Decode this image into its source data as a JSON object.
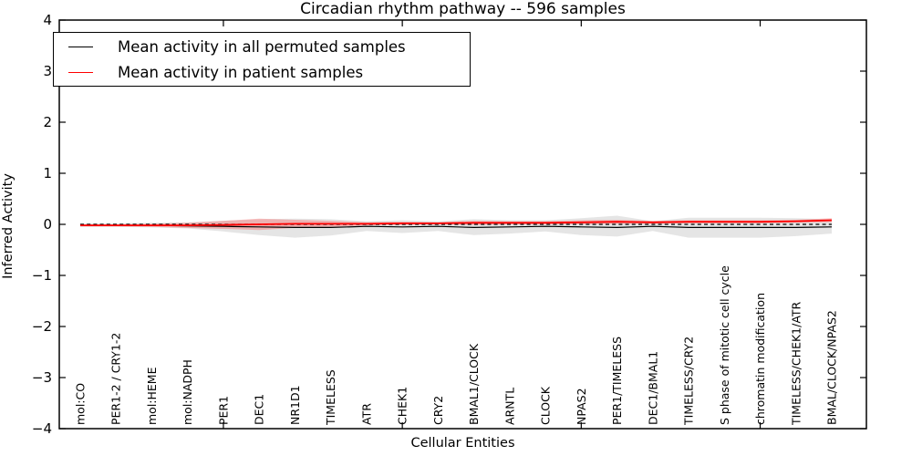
{
  "title": "Circadian rhythm pathway -- 596 samples",
  "legend": {
    "items": [
      {
        "label": "Mean activity in all permuted samples",
        "color": "#000000"
      },
      {
        "label": "Mean activity in patient samples",
        "color": "#ff0000"
      }
    ]
  },
  "chart_data": {
    "type": "line",
    "title": "Circadian rhythm pathway -- 596 samples",
    "xlabel": "Cellular Entities",
    "ylabel": "Inferred Activity",
    "ylim": [
      -4,
      4
    ],
    "ytick_values": [
      -4,
      -3,
      -2,
      -1,
      0,
      1,
      2,
      3,
      4
    ],
    "ytick_labels": [
      "−4",
      "−3",
      "−2",
      "−1",
      "0",
      "1",
      "2",
      "3",
      "4"
    ],
    "xticks_major_positions": [
      5,
      10,
      15,
      20
    ],
    "grid": false,
    "legend_position": "upper-left",
    "categories": [
      "mol:CO",
      "PER1-2 / CRY1-2",
      "mol:HEME",
      "mol:NADPH",
      "PER1",
      "DEC1",
      "NR1D1",
      "TIMELESS",
      "ATR",
      "CHEK1",
      "CRY2",
      "BMAL1/CLOCK",
      "ARNTL",
      "CLOCK",
      "NPAS2",
      "PER1/TIMELESS",
      "DEC1/BMAL1",
      "TIMELESS/CRY2",
      "S phase of mitotic cell cycle",
      "chromatin modification",
      "TIMELESS/CHEK1/ATR",
      "BMAL/CLOCK/NPAS2"
    ],
    "series": [
      {
        "name": "Mean activity in all permuted samples",
        "color": "#000000",
        "style": "solid",
        "values": [
          -0.02,
          -0.02,
          -0.02,
          -0.03,
          -0.04,
          -0.05,
          -0.06,
          -0.06,
          -0.04,
          -0.05,
          -0.04,
          -0.06,
          -0.05,
          -0.04,
          -0.05,
          -0.06,
          -0.04,
          -0.06,
          -0.06,
          -0.06,
          -0.06,
          -0.05
        ]
      },
      {
        "name": "Mean activity in patient samples",
        "color": "#ff0000",
        "style": "solid",
        "values": [
          -0.02,
          -0.02,
          -0.02,
          -0.02,
          -0.01,
          0.0,
          0.01,
          0.01,
          0.01,
          0.02,
          0.02,
          0.03,
          0.03,
          0.03,
          0.04,
          0.05,
          0.04,
          0.05,
          0.05,
          0.05,
          0.06,
          0.08
        ]
      }
    ],
    "bands": [
      {
        "name": "permuted-samples-range",
        "color": "#bfbfbf",
        "opacity": 0.4,
        "upper": [
          0.02,
          0.02,
          0.03,
          0.04,
          0.07,
          0.1,
          0.11,
          0.1,
          0.06,
          0.08,
          0.06,
          0.1,
          0.08,
          0.08,
          0.12,
          0.17,
          0.06,
          0.13,
          0.13,
          0.13,
          0.12,
          0.1
        ],
        "lower": [
          -0.05,
          -0.05,
          -0.06,
          -0.08,
          -0.14,
          -0.21,
          -0.26,
          -0.22,
          -0.13,
          -0.17,
          -0.13,
          -0.21,
          -0.18,
          -0.14,
          -0.21,
          -0.24,
          -0.13,
          -0.26,
          -0.26,
          -0.26,
          -0.23,
          -0.18
        ]
      },
      {
        "name": "patient-samples-range",
        "color": "#ff2a2a",
        "opacity": 0.28,
        "upper": [
          0.0,
          0.0,
          0.01,
          0.03,
          0.07,
          0.11,
          0.09,
          0.07,
          0.04,
          0.05,
          0.04,
          0.07,
          0.06,
          0.06,
          0.08,
          0.09,
          0.07,
          0.08,
          0.08,
          0.08,
          0.09,
          0.12
        ],
        "lower": [
          -0.04,
          -0.04,
          -0.05,
          -0.07,
          -0.09,
          -0.11,
          -0.07,
          -0.05,
          -0.02,
          -0.01,
          0.0,
          -0.01,
          0.0,
          0.0,
          0.0,
          0.01,
          0.01,
          0.02,
          0.02,
          0.02,
          0.03,
          0.04
        ]
      }
    ],
    "zero_line": {
      "value": 0,
      "style": "dashed",
      "color": "#000000"
    }
  }
}
